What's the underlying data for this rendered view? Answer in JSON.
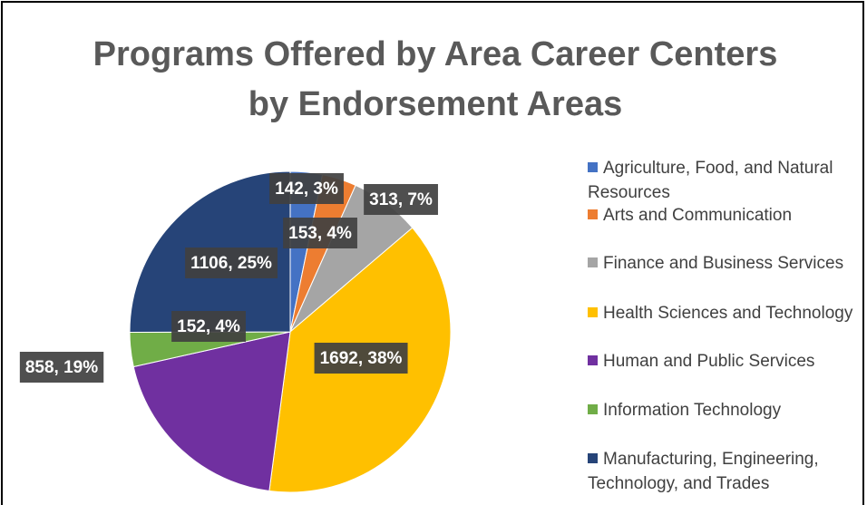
{
  "chart_data": {
    "type": "pie",
    "title": "Programs Offered by Area Career Centers by Endorsement Areas",
    "categories": [
      "Agriculture, Food, and Natural Resources",
      "Arts and Communication",
      "Finance and Business Services",
      "Health Sciences and Technology",
      "Human and Public Services",
      "Information Technology",
      "Manufacturing, Engineering, Technology, and Trades"
    ],
    "values": [
      142,
      153,
      313,
      1692,
      858,
      152,
      1106
    ],
    "value_labels": [
      "142, 3%",
      "153, 4%",
      "313, 7%",
      "1692, 38%",
      "858, 19%",
      "152, 4%",
      "1106, 25%"
    ],
    "colors": [
      "#4472c4",
      "#ed7d31",
      "#a5a5a5",
      "#ffc000",
      "#7030a0",
      "#70ad47",
      "#264478"
    ],
    "legend": "right"
  }
}
